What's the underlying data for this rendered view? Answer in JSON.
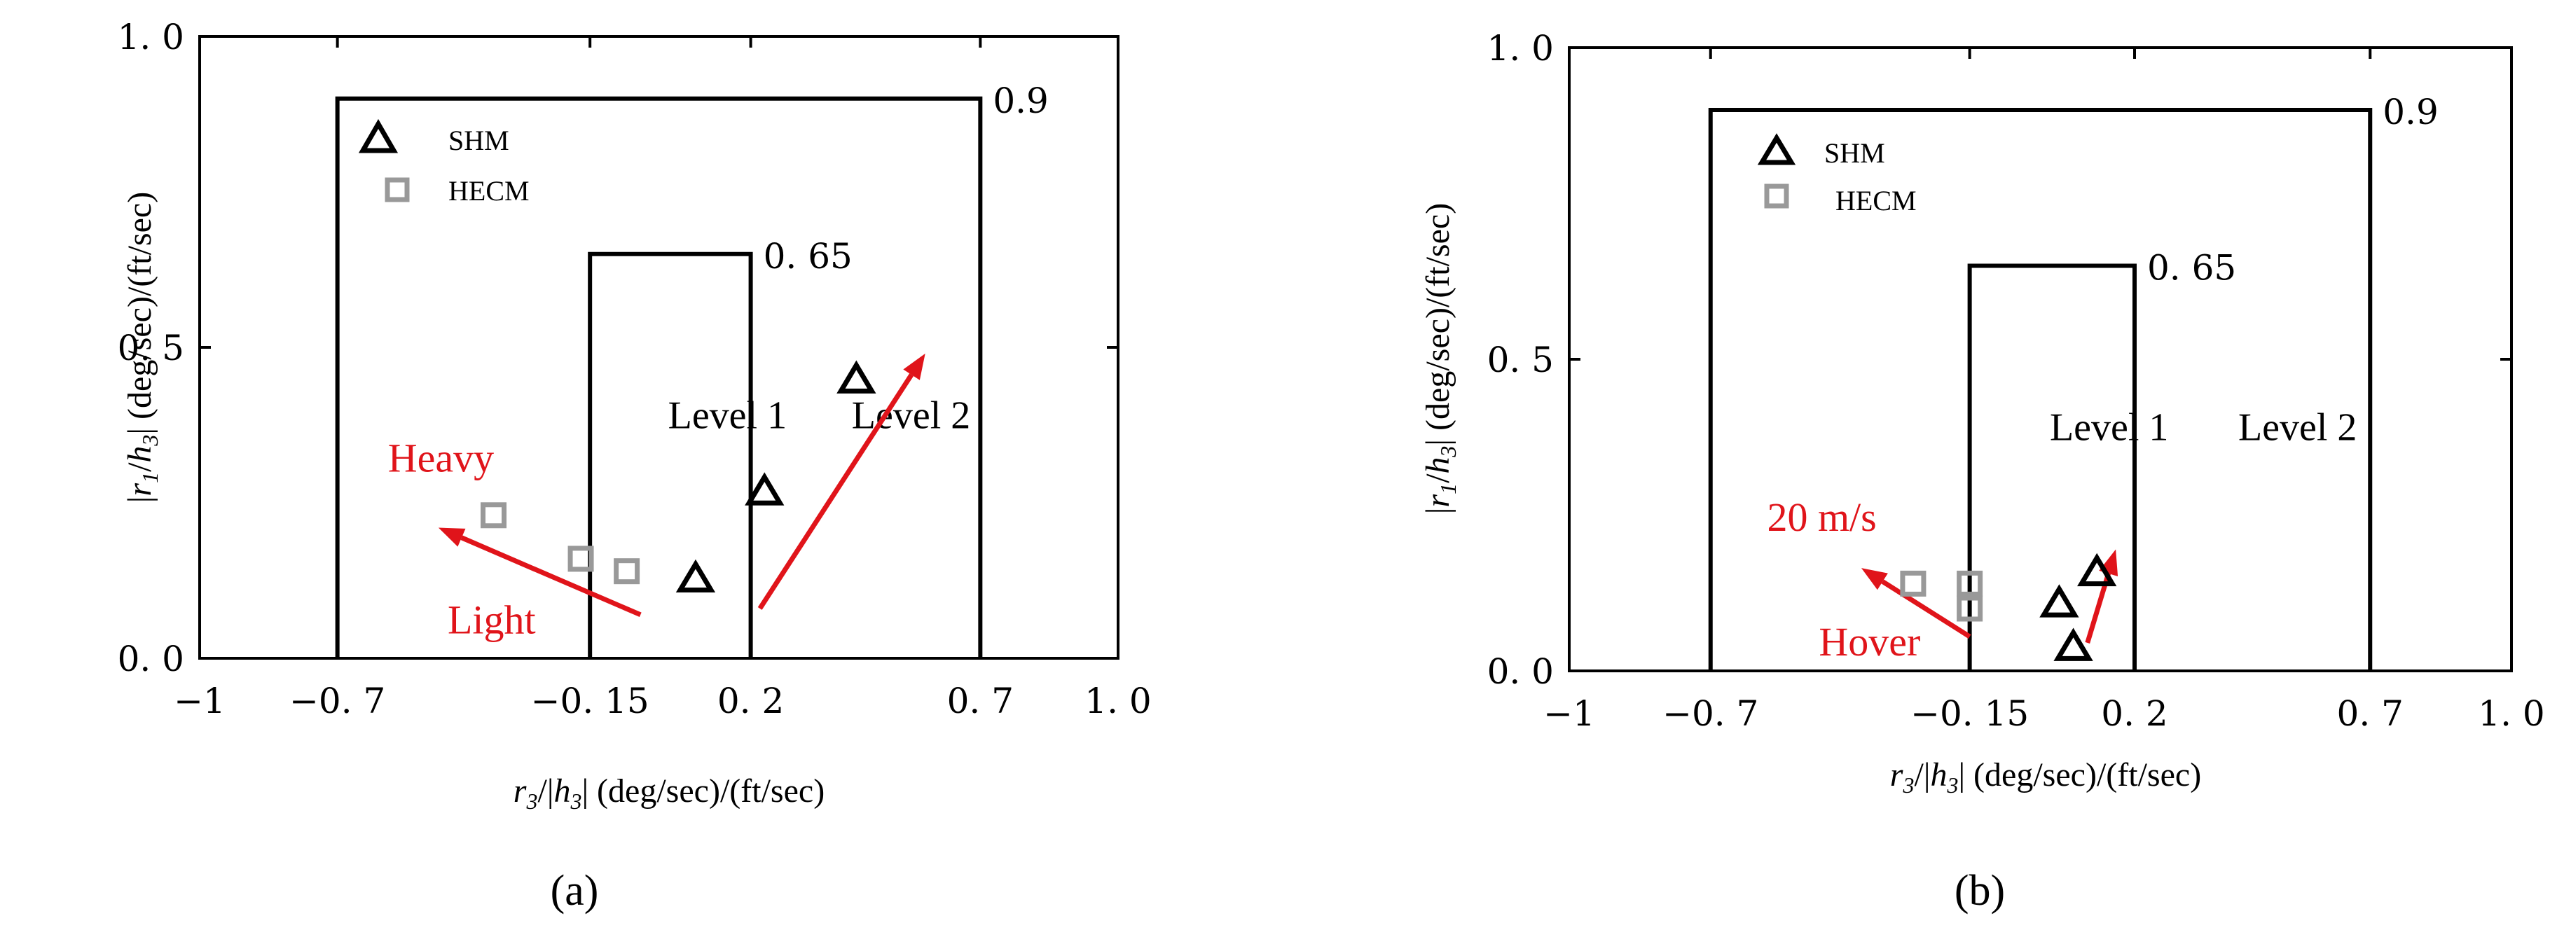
{
  "chart_data": [
    {
      "type": "scatter",
      "panel_label": "(a)",
      "xlabel": "r3/|ḣ3| (deg/sec)/(ft/sec)",
      "ylabel": "|r1/ḣ3| (deg/sec)/(ft/sec)",
      "xlim": [
        -1,
        1.0
      ],
      "ylim": [
        0.0,
        1.0
      ],
      "x_ticks": [
        {
          "value": -1,
          "label": "−1"
        },
        {
          "value": -0.7,
          "label": "−0. 7"
        },
        {
          "value": -0.15,
          "label": "−0. 15"
        },
        {
          "value": 0.2,
          "label": "0. 2"
        },
        {
          "value": 0.7,
          "label": "0. 7"
        },
        {
          "value": 1.0,
          "label": "1. 0"
        }
      ],
      "y_ticks": [
        {
          "value": 0.0,
          "label": "0. 0"
        },
        {
          "value": 0.5,
          "label": "0. 5"
        },
        {
          "value": 1.0,
          "label": "1. 0"
        }
      ],
      "boundaries": [
        {
          "x_range": [
            -0.7,
            0.7
          ],
          "y": 0.9,
          "label": "0.9"
        },
        {
          "x_range": [
            -0.15,
            0.2
          ],
          "y": 0.65,
          "label": "0. 65"
        }
      ],
      "region_labels": [
        {
          "text": "Level 1",
          "x": 0.02,
          "y": 0.37
        },
        {
          "text": "Level 2",
          "x": 0.42,
          "y": 0.37
        }
      ],
      "legend": {
        "position": "top-left",
        "entries": [
          "SHM",
          "HECM"
        ]
      },
      "series": [
        {
          "name": "SHM",
          "marker": "triangle",
          "color": "#000000",
          "x": [
            0.08,
            0.23,
            0.43
          ],
          "y": [
            0.13,
            0.27,
            0.45
          ]
        },
        {
          "name": "HECM",
          "marker": "square",
          "color": "#999999",
          "x": [
            -0.36,
            -0.17,
            -0.07
          ],
          "y": [
            0.23,
            0.16,
            0.14
          ]
        }
      ],
      "arrows": [
        {
          "from": [
            -0.04,
            0.07
          ],
          "to": [
            -0.48,
            0.21
          ],
          "color": "#e0141a"
        },
        {
          "from": [
            0.22,
            0.08
          ],
          "to": [
            0.58,
            0.49
          ],
          "color": "#e0141a"
        }
      ],
      "annotations": [
        {
          "text": "Heavy",
          "x": -0.59,
          "y": 0.3,
          "color": "#e0141a"
        },
        {
          "text": "Light",
          "x": -0.46,
          "y": 0.04,
          "color": "#e0141a"
        }
      ]
    },
    {
      "type": "scatter",
      "panel_label": "(b)",
      "xlabel": "r3/|ḣ3| (deg/sec)/(ft/sec)",
      "ylabel": "|r1/ḣ3| (deg/sec)/(ft/sec)",
      "xlim": [
        -1,
        1.0
      ],
      "ylim": [
        0.0,
        1.0
      ],
      "x_ticks": [
        {
          "value": -1,
          "label": "−1"
        },
        {
          "value": -0.7,
          "label": "−0. 7"
        },
        {
          "value": -0.15,
          "label": "−0. 15"
        },
        {
          "value": 0.2,
          "label": "0. 2"
        },
        {
          "value": 0.7,
          "label": "0. 7"
        },
        {
          "value": 1.0,
          "label": "1. 0"
        }
      ],
      "y_ticks": [
        {
          "value": 0.0,
          "label": "0. 0"
        },
        {
          "value": 0.5,
          "label": "0. 5"
        },
        {
          "value": 1.0,
          "label": "1. 0"
        }
      ],
      "boundaries": [
        {
          "x_range": [
            -0.7,
            0.7
          ],
          "y": 0.9,
          "label": "0.9"
        },
        {
          "x_range": [
            -0.15,
            0.2
          ],
          "y": 0.65,
          "label": "0. 65"
        }
      ],
      "region_labels": [
        {
          "text": "Level 1",
          "x": 0.02,
          "y": 0.37
        },
        {
          "text": "Level 2",
          "x": 0.42,
          "y": 0.37
        }
      ],
      "legend": {
        "position": "top-left",
        "entries": [
          "SHM",
          "HECM"
        ]
      },
      "series": [
        {
          "name": "SHM",
          "marker": "triangle",
          "color": "#000000",
          "x": [
            0.04,
            0.07,
            0.12
          ],
          "y": [
            0.11,
            0.04,
            0.16
          ]
        },
        {
          "name": "HECM",
          "marker": "square",
          "color": "#999999",
          "x": [
            -0.27,
            -0.15,
            -0.15
          ],
          "y": [
            0.14,
            0.14,
            0.1
          ]
        }
      ],
      "arrows": [
        {
          "from": [
            -0.15,
            0.055
          ],
          "to": [
            -0.38,
            0.165
          ],
          "color": "#e0141a"
        },
        {
          "from": [
            0.1,
            0.045
          ],
          "to": [
            0.16,
            0.195
          ],
          "color": "#e0141a"
        }
      ],
      "annotations": [
        {
          "text": "20 m/s",
          "x": -0.58,
          "y": 0.225,
          "color": "#e0141a"
        },
        {
          "text": "Hover",
          "x": -0.47,
          "y": 0.025,
          "color": "#e0141a"
        }
      ]
    }
  ]
}
